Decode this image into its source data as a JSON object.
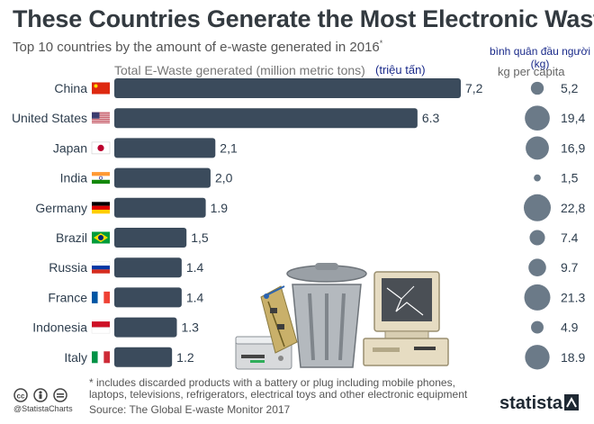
{
  "title": "These Countries Generate the Most Electronic Waste",
  "subtitle": "Top 10 countries by the amount of e-waste generated in 2016",
  "subtitle_mark": "*",
  "column_total_label": "Total E-Waste generated (million metric tons)",
  "column_total_label_vn": "(triệu tấn)",
  "column_percapita_label_vn": "bình quân đầu người (kg)",
  "column_percapita_label": "kg per capita",
  "footnote_line1": "* includes discarded products with a battery or plug including mobile phones,",
  "footnote_line2": "laptops, televisions, refrigerators, electrical toys and other electronic equipment",
  "source": "Source: The Global E-waste Monitor 2017",
  "credit": "@StatistaCharts",
  "brand": "statista",
  "colors": {
    "bar": "#3b4b5c",
    "dot": "#6b7a88",
    "text": "#2e3e4e"
  },
  "chart_data": {
    "type": "bar",
    "orientation": "horizontal",
    "categories": [
      "China",
      "United States",
      "Japan",
      "India",
      "Germany",
      "Brazil",
      "Russia",
      "France",
      "Indonesia",
      "Italy"
    ],
    "series": [
      {
        "name": "Total E-Waste generated (million metric tons)",
        "values": [
          7.2,
          6.3,
          2.1,
          2.0,
          1.9,
          1.5,
          1.4,
          1.4,
          1.3,
          1.2
        ],
        "labels": [
          "7,2",
          "6.3",
          "2,1",
          "2,0",
          "1.9",
          "1,5",
          "1.4",
          "1.4",
          "1.3",
          "1.2"
        ]
      },
      {
        "name": "kg per capita",
        "values": [
          5.2,
          19.4,
          16.9,
          1.5,
          22.8,
          7.4,
          9.7,
          21.3,
          4.9,
          18.9
        ],
        "labels": [
          "5,2",
          "19,4",
          "16,9",
          "1,5",
          "22,8",
          "7.4",
          "9.7",
          "21.3",
          "4.9",
          "18.9"
        ]
      }
    ],
    "flags": [
      "china-flag-icon",
      "usa-flag-icon",
      "japan-flag-icon",
      "india-flag-icon",
      "germany-flag-icon",
      "brazil-flag-icon",
      "russia-flag-icon",
      "france-flag-icon",
      "indonesia-flag-icon",
      "italy-flag-icon"
    ],
    "grid": false,
    "legend": "none",
    "decorations": [
      "trash-can-illustration",
      "retro-computer-illustration",
      "dvd-player-illustration",
      "circuit-board-illustration"
    ]
  }
}
